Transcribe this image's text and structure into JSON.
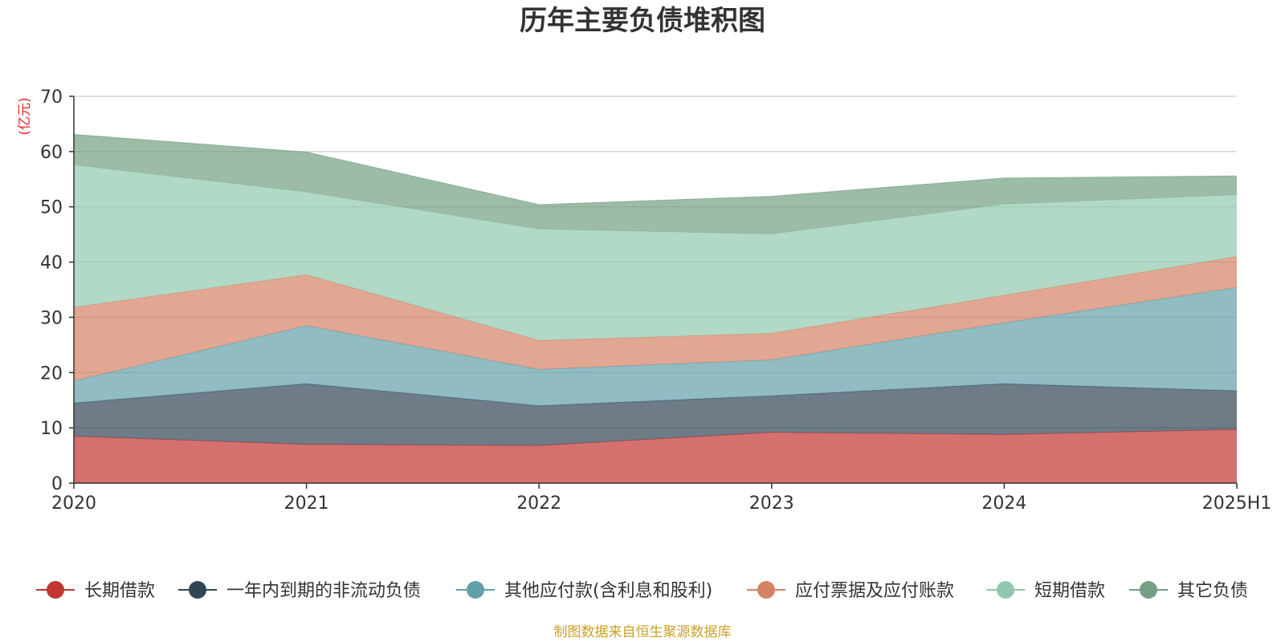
{
  "chart_data": {
    "type": "area",
    "stacked": true,
    "title": "历年主要负债堆积图",
    "unit": "(亿元)",
    "x": [
      "2020",
      "2021",
      "2022",
      "2023",
      "2024",
      "2025H1"
    ],
    "ylim": [
      0,
      70
    ],
    "yticks": [
      0,
      10,
      20,
      30,
      40,
      50,
      60,
      70
    ],
    "grid": true,
    "legend_position": "bottom",
    "series": [
      {
        "name": "长期借款",
        "color": "#c23531",
        "values": [
          8.5,
          7.0,
          6.8,
          9.2,
          8.8,
          9.7
        ]
      },
      {
        "name": "一年内到期的非流动负债",
        "color": "#2f4554",
        "values": [
          6.0,
          11.0,
          7.2,
          6.6,
          9.2,
          7.0
        ]
      },
      {
        "name": "其他应付款(含利息和股利)",
        "color": "#61a0a8",
        "values": [
          4.0,
          10.5,
          6.6,
          6.5,
          11.0,
          18.7
        ]
      },
      {
        "name": "应付票据及应付账款",
        "color": "#d48265",
        "values": [
          13.3,
          9.2,
          5.2,
          4.8,
          5.0,
          5.6
        ]
      },
      {
        "name": "短期借款",
        "color": "#91c7ae",
        "values": [
          25.8,
          15.0,
          20.2,
          18.0,
          16.5,
          11.2
        ]
      },
      {
        "name": "其它负债",
        "color": "#749f83",
        "values": [
          5.5,
          7.2,
          4.4,
          6.8,
          4.7,
          3.4
        ]
      }
    ]
  },
  "footer": {
    "source": "制图数据来自恒生聚源数据库"
  }
}
